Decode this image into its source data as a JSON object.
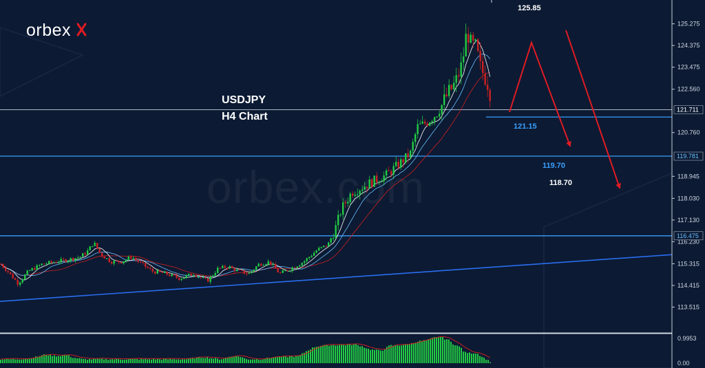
{
  "brand": {
    "logo_text": "orbex",
    "watermark_text": "orbex.com"
  },
  "chart_data": {
    "type": "candlestick",
    "title": "USDJPY",
    "subtitle": "H4 Chart",
    "price_axis": {
      "ylim": [
        112.9,
        125.75
      ],
      "ticks": [
        "125.275",
        "124.375",
        "123.475",
        "122.560",
        "120.760",
        "118.945",
        "118.030",
        "117.130",
        "116.230",
        "115.315",
        "114.415",
        "113.515"
      ]
    },
    "current_price": {
      "label": "121.711",
      "value": 121.711
    },
    "candle_path": [
      [
        0,
        115.3
      ],
      [
        10,
        115.0
      ],
      [
        25,
        114.5
      ],
      [
        40,
        115.0
      ],
      [
        60,
        115.3
      ],
      [
        80,
        115.4
      ],
      [
        100,
        115.5
      ],
      [
        115,
        115.6
      ],
      [
        125,
        115.8
      ],
      [
        135,
        116.2
      ],
      [
        145,
        115.7
      ],
      [
        160,
        115.4
      ],
      [
        175,
        115.4
      ],
      [
        190,
        115.6
      ],
      [
        205,
        115.3
      ],
      [
        220,
        115.0
      ],
      [
        240,
        114.9
      ],
      [
        260,
        114.7
      ],
      [
        280,
        114.9
      ],
      [
        300,
        114.6
      ],
      [
        315,
        115.1
      ],
      [
        330,
        115.2
      ],
      [
        345,
        115.0
      ],
      [
        360,
        114.9
      ],
      [
        375,
        115.3
      ],
      [
        390,
        115.4
      ],
      [
        405,
        114.9
      ],
      [
        420,
        115.1
      ],
      [
        440,
        115.4
      ],
      [
        460,
        115.9
      ],
      [
        475,
        116.1
      ],
      [
        485,
        116.7
      ],
      [
        495,
        117.6
      ],
      [
        510,
        118.3
      ],
      [
        525,
        118.5
      ],
      [
        545,
        118.8
      ],
      [
        560,
        119.0
      ],
      [
        580,
        119.5
      ],
      [
        595,
        119.9
      ],
      [
        605,
        121.0
      ],
      [
        620,
        121.2
      ],
      [
        635,
        121.6
      ],
      [
        648,
        122.3
      ],
      [
        660,
        122.8
      ],
      [
        670,
        123.6
      ],
      [
        677,
        125.0
      ],
      [
        683,
        124.4
      ],
      [
        690,
        124.3
      ],
      [
        697,
        123.4
      ],
      [
        703,
        123.1
      ],
      [
        710,
        122.6
      ],
      [
        713,
        121.71
      ]
    ],
    "levels": [
      {
        "name": "resistance",
        "value": 121.711,
        "label": "121.711",
        "color": "#b0b8c4"
      },
      {
        "name": "support-1",
        "value": 119.781,
        "label": "119.781",
        "color": "#3aa0ff"
      },
      {
        "name": "support-2",
        "value": 116.475,
        "label": "116.475",
        "color": "#3aa0ff"
      }
    ],
    "trendline": {
      "from": [
        0,
        113.75
      ],
      "to": [
        980,
        115.7
      ],
      "color": "#2a6ef0"
    },
    "annotations": [
      {
        "label": "125.85",
        "value": 125.85,
        "color": "#ffffff"
      },
      {
        "label": "121.15",
        "value": 121.15,
        "color": "#3aa0ff"
      },
      {
        "label": "119.70",
        "value": 119.7,
        "color": "#3aa0ff"
      },
      {
        "label": "118.70",
        "value": 118.7,
        "color": "#ffffff"
      }
    ],
    "oscillator": {
      "ticks": [
        "0.9953",
        "0.00"
      ],
      "bull_color": "#22cc44",
      "bear_color": "#cc2222"
    },
    "colors": {
      "background": "#0c1a33",
      "bull": "#22cc44",
      "bear": "#cc2222",
      "forecast_arrow": "#e01b24",
      "fast_ma": "#ffffff",
      "mid_ma": "#6ac0ff",
      "slow_ma": "#d02020"
    }
  }
}
